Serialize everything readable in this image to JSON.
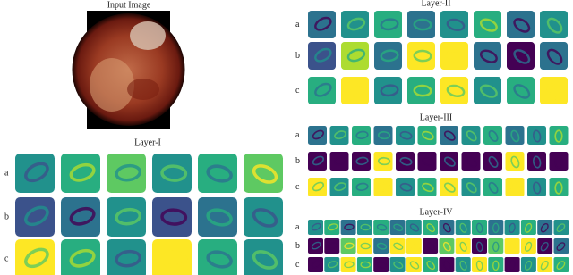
{
  "input_image": {
    "title": "Input Image"
  },
  "layers": [
    {
      "title": "Layer-I",
      "rows": [
        "a",
        "b",
        "c"
      ]
    },
    {
      "title": "Layer-II",
      "rows": [
        "a",
        "b",
        "c"
      ]
    },
    {
      "title": "Layer-III",
      "rows": [
        "a",
        "b",
        "c"
      ]
    },
    {
      "title": "Layer-IV",
      "rows": [
        "a",
        "b",
        "c"
      ]
    }
  ]
}
